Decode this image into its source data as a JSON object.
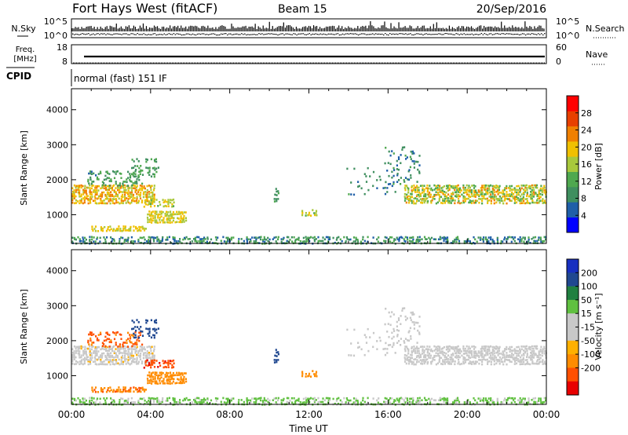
{
  "header": {
    "title": "Fort Hays West (fitACF)",
    "beam": "Beam 15",
    "date": "20/Sep/2016"
  },
  "status_panels": {
    "nsky": {
      "label": "N.Sky",
      "right_label": "N.Search",
      "left_ticks": [
        "10^5",
        "10^0"
      ],
      "right_ticks": [
        "10^5",
        "10^0"
      ]
    },
    "freq": {
      "label_lines": [
        "Freq.",
        "[MHz]"
      ],
      "right_label": "Nave",
      "left_ticks": [
        "18",
        "8"
      ],
      "right_ticks": [
        "60",
        "0"
      ]
    },
    "cpid": {
      "label": "CPID",
      "value": "normal (fast) 151 IF"
    }
  },
  "colors": {
    "power_scale": [
      "#0000ff",
      "#1f5fa8",
      "#3f8f5f",
      "#4fa84f",
      "#a8c83c",
      "#f0c000",
      "#f08000",
      "#e84000",
      "#ff0000"
    ],
    "velocity_scale": [
      "#e80000",
      "#ff5000",
      "#ff8c00",
      "#ffb000",
      "#c8c8c8",
      "#c8c8c8",
      "#60c040",
      "#208040",
      "#204890",
      "#1830c0"
    ]
  },
  "chart_data": [
    {
      "type": "heatmap",
      "name": "power",
      "ylabel": "Slant Range [km]",
      "ylim": [
        180,
        4600
      ],
      "yticks": [
        1000,
        2000,
        3000,
        4000
      ],
      "colorbar": {
        "label": "Power [dB]",
        "ticks": [
          "4",
          "8",
          "12",
          "16",
          "20",
          "24",
          "28"
        ],
        "range": [
          0,
          32
        ]
      }
    },
    {
      "type": "heatmap",
      "name": "velocity",
      "ylabel": "Slant Range [km]",
      "xlabel": "Time UT",
      "ylim": [
        180,
        4600
      ],
      "yticks": [
        1000,
        2000,
        3000,
        4000
      ],
      "xticks": [
        "00:00",
        "04:00",
        "08:00",
        "12:00",
        "16:00",
        "20:00",
        "00:00"
      ],
      "colorbar": {
        "label": "Velocity [m s⁻¹]",
        "ticks": [
          "200",
          "100",
          "50",
          "15",
          "-15",
          "-50",
          "-100",
          "-200"
        ]
      }
    }
  ]
}
